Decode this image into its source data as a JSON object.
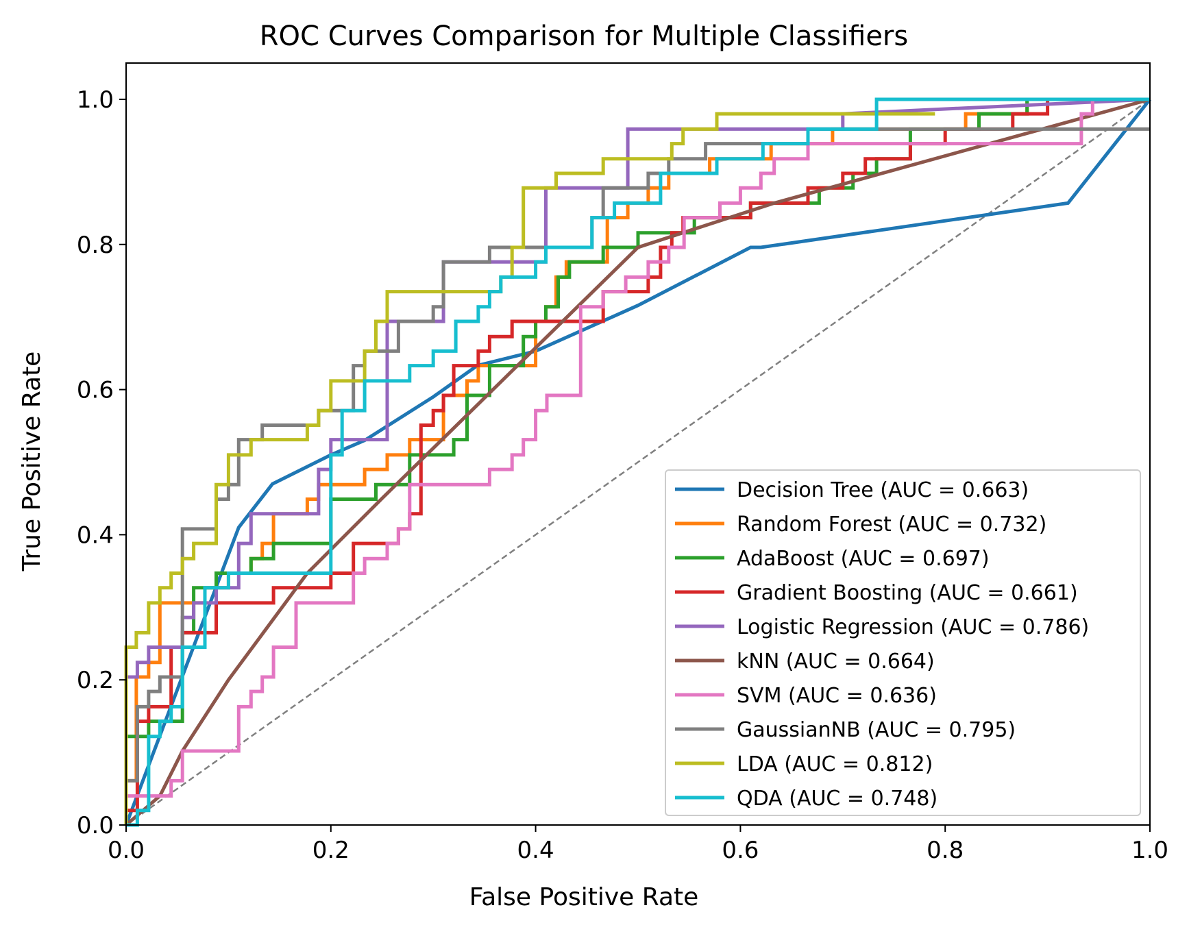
{
  "chart_data": {
    "type": "line",
    "title": "ROC Curves Comparison for Multiple Classifiers",
    "xlabel": "False Positive Rate",
    "ylabel": "True Positive Rate",
    "xlim": [
      0.0,
      1.0
    ],
    "ylim": [
      0.0,
      1.05
    ],
    "xticks": [
      "0.0",
      "0.2",
      "0.4",
      "0.6",
      "0.8",
      "1.0"
    ],
    "yticks": [
      "0.0",
      "0.2",
      "0.4",
      "0.6",
      "0.8",
      "1.0"
    ],
    "grid": false,
    "legend_position": "lower-right",
    "reference_line": {
      "x": [
        0,
        1
      ],
      "y": [
        0,
        1
      ],
      "color": "#808080",
      "style": "dashed"
    },
    "series": [
      {
        "name": "Decision Tree (AUC = 0.663)",
        "color": "#1f77b4",
        "x": [
          0,
          0.11,
          0.143,
          0.2,
          0.233,
          0.3,
          0.343,
          0.4,
          0.5,
          0.61,
          0.62,
          0.92,
          1.0
        ],
        "y": [
          0,
          0.41,
          0.47,
          0.51,
          0.53,
          0.59,
          0.633,
          0.653,
          0.716,
          0.796,
          0.796,
          0.857,
          1.0
        ]
      },
      {
        "name": "Random Forest (AUC = 0.732)",
        "color": "#ff7f0e",
        "x": [
          0,
          0,
          0.01,
          0.01,
          0.022,
          0.022,
          0.033,
          0.033,
          0.077,
          0.077,
          0.1,
          0.1,
          0.122,
          0.122,
          0.133,
          0.133,
          0.144,
          0.144,
          0.177,
          0.177,
          0.188,
          0.188,
          0.233,
          0.233,
          0.255,
          0.255,
          0.277,
          0.277,
          0.31,
          0.31,
          0.333,
          0.333,
          0.344,
          0.344,
          0.4,
          0.4,
          0.41,
          0.41,
          0.42,
          0.42,
          0.43,
          0.43,
          0.47,
          0.47,
          0.49,
          0.49,
          0.51,
          0.51,
          0.53,
          0.53,
          0.57,
          0.57,
          0.63,
          0.63,
          0.69,
          0.69,
          0.82,
          0.82,
          0.88,
          0.88,
          1.0
        ],
        "y": [
          0,
          0.061,
          0.061,
          0.204,
          0.204,
          0.224,
          0.224,
          0.306,
          0.306,
          0.327,
          0.327,
          0.347,
          0.347,
          0.367,
          0.367,
          0.388,
          0.388,
          0.429,
          0.429,
          0.449,
          0.449,
          0.469,
          0.469,
          0.49,
          0.49,
          0.51,
          0.51,
          0.531,
          0.531,
          0.592,
          0.592,
          0.612,
          0.612,
          0.633,
          0.633,
          0.694,
          0.694,
          0.714,
          0.714,
          0.755,
          0.755,
          0.776,
          0.776,
          0.837,
          0.837,
          0.857,
          0.857,
          0.878,
          0.878,
          0.898,
          0.898,
          0.918,
          0.918,
          0.939,
          0.939,
          0.959,
          0.959,
          0.98,
          0.98,
          1.0,
          1.0
        ]
      },
      {
        "name": "AdaBoost (AUC = 0.697)",
        "color": "#2ca02c",
        "x": [
          0,
          0,
          0.022,
          0.022,
          0.055,
          0.055,
          0.066,
          0.066,
          0.088,
          0.088,
          0.122,
          0.122,
          0.144,
          0.144,
          0.155,
          0.155,
          0.2,
          0.2,
          0.244,
          0.244,
          0.277,
          0.277,
          0.31,
          0.31,
          0.32,
          0.32,
          0.333,
          0.333,
          0.355,
          0.355,
          0.388,
          0.388,
          0.4,
          0.4,
          0.41,
          0.41,
          0.422,
          0.422,
          0.433,
          0.433,
          0.466,
          0.466,
          0.5,
          0.5,
          0.555,
          0.555,
          0.61,
          0.61,
          0.677,
          0.677,
          0.71,
          0.71,
          0.733,
          0.733,
          0.766,
          0.766,
          0.82,
          0.82,
          0.833,
          0.833,
          0.88,
          0.88,
          1.0
        ],
        "y": [
          0,
          0.122,
          0.122,
          0.143,
          0.143,
          0.265,
          0.265,
          0.327,
          0.327,
          0.347,
          0.347,
          0.367,
          0.367,
          0.388,
          0.388,
          0.388,
          0.388,
          0.449,
          0.449,
          0.469,
          0.469,
          0.51,
          0.51,
          0.51,
          0.51,
          0.531,
          0.531,
          0.592,
          0.592,
          0.633,
          0.633,
          0.673,
          0.673,
          0.694,
          0.694,
          0.714,
          0.714,
          0.755,
          0.755,
          0.776,
          0.776,
          0.796,
          0.796,
          0.816,
          0.816,
          0.837,
          0.837,
          0.857,
          0.857,
          0.878,
          0.878,
          0.898,
          0.898,
          0.918,
          0.918,
          0.959,
          0.959,
          0.959,
          0.959,
          0.98,
          0.98,
          1.0,
          1.0
        ]
      },
      {
        "name": "Gradient Boosting (AUC = 0.661)",
        "color": "#d62728",
        "x": [
          0,
          0,
          0.011,
          0.011,
          0.022,
          0.022,
          0.044,
          0.044,
          0.055,
          0.055,
          0.066,
          0.066,
          0.088,
          0.088,
          0.1,
          0.1,
          0.144,
          0.144,
          0.177,
          0.177,
          0.2,
          0.2,
          0.222,
          0.222,
          0.255,
          0.255,
          0.266,
          0.266,
          0.277,
          0.277,
          0.288,
          0.288,
          0.3,
          0.3,
          0.31,
          0.31,
          0.32,
          0.32,
          0.344,
          0.344,
          0.355,
          0.355,
          0.377,
          0.377,
          0.466,
          0.466,
          0.51,
          0.51,
          0.522,
          0.522,
          0.533,
          0.533,
          0.544,
          0.544,
          0.61,
          0.61,
          0.666,
          0.666,
          0.7,
          0.7,
          0.722,
          0.722,
          0.766,
          0.766,
          0.8,
          0.8,
          0.866,
          0.866,
          0.9,
          0.9,
          0.93,
          0.93,
          1.0
        ],
        "y": [
          0,
          0.02,
          0.02,
          0.143,
          0.143,
          0.163,
          0.163,
          0.245,
          0.245,
          0.265,
          0.265,
          0.265,
          0.265,
          0.306,
          0.306,
          0.306,
          0.306,
          0.327,
          0.327,
          0.327,
          0.327,
          0.347,
          0.347,
          0.388,
          0.388,
          0.388,
          0.388,
          0.408,
          0.408,
          0.429,
          0.429,
          0.551,
          0.551,
          0.571,
          0.571,
          0.592,
          0.592,
          0.633,
          0.633,
          0.653,
          0.653,
          0.673,
          0.673,
          0.694,
          0.694,
          0.735,
          0.735,
          0.755,
          0.755,
          0.796,
          0.796,
          0.816,
          0.816,
          0.837,
          0.837,
          0.857,
          0.857,
          0.878,
          0.878,
          0.898,
          0.898,
          0.918,
          0.918,
          0.939,
          0.939,
          0.959,
          0.959,
          0.98,
          0.98,
          1.0,
          1.0,
          1.0,
          1.0
        ]
      },
      {
        "name": "Logistic Regression (AUC = 0.786)",
        "color": "#9467bd",
        "x": [
          0,
          0,
          0.011,
          0.011,
          0.022,
          0.022,
          0.055,
          0.055,
          0.066,
          0.066,
          0.088,
          0.088,
          0.11,
          0.11,
          0.122,
          0.122,
          0.188,
          0.188,
          0.2,
          0.2,
          0.255,
          0.255,
          0.31,
          0.31,
          0.41,
          0.41,
          0.49,
          0.49,
          0.7,
          0.7,
          1.0
        ],
        "y": [
          0,
          0.204,
          0.204,
          0.224,
          0.224,
          0.245,
          0.245,
          0.286,
          0.286,
          0.306,
          0.306,
          0.327,
          0.327,
          0.388,
          0.388,
          0.429,
          0.429,
          0.49,
          0.49,
          0.531,
          0.531,
          0.694,
          0.694,
          0.776,
          0.776,
          0.878,
          0.878,
          0.959,
          0.959,
          0.98,
          1.0
        ]
      },
      {
        "name": "kNN (AUC = 0.664)",
        "color": "#8c564b",
        "x": [
          0,
          0.033,
          0.055,
          0.1,
          0.177,
          0.25,
          0.5,
          0.633,
          1.0
        ],
        "y": [
          0,
          0.04,
          0.102,
          0.2,
          0.347,
          0.45,
          0.796,
          0.857,
          1.0
        ]
      },
      {
        "name": "SVM (AUC = 0.636)",
        "color": "#e377c2",
        "x": [
          0,
          0.044,
          0.044,
          0.055,
          0.055,
          0.11,
          0.11,
          0.122,
          0.122,
          0.133,
          0.133,
          0.144,
          0.144,
          0.166,
          0.166,
          0.222,
          0.222,
          0.233,
          0.233,
          0.255,
          0.255,
          0.266,
          0.266,
          0.277,
          0.277,
          0.355,
          0.355,
          0.377,
          0.377,
          0.388,
          0.388,
          0.4,
          0.4,
          0.411,
          0.411,
          0.444,
          0.444,
          0.455,
          0.455,
          0.466,
          0.466,
          0.488,
          0.488,
          0.51,
          0.51,
          0.53,
          0.53,
          0.545,
          0.545,
          0.58,
          0.58,
          0.6,
          0.6,
          0.62,
          0.62,
          0.633,
          0.633,
          0.644,
          0.644,
          0.666,
          0.666,
          0.677,
          0.677,
          0.933,
          0.933,
          0.944,
          0.944,
          1.0
        ],
        "y": [
          0.04,
          0.04,
          0.061,
          0.061,
          0.102,
          0.102,
          0.163,
          0.163,
          0.184,
          0.184,
          0.204,
          0.204,
          0.245,
          0.245,
          0.306,
          0.306,
          0.347,
          0.347,
          0.367,
          0.367,
          0.388,
          0.388,
          0.408,
          0.408,
          0.469,
          0.469,
          0.49,
          0.49,
          0.51,
          0.51,
          0.531,
          0.531,
          0.571,
          0.571,
          0.592,
          0.592,
          0.714,
          0.714,
          0.714,
          0.714,
          0.735,
          0.735,
          0.755,
          0.755,
          0.776,
          0.776,
          0.796,
          0.796,
          0.837,
          0.837,
          0.857,
          0.857,
          0.878,
          0.878,
          0.898,
          0.898,
          0.918,
          0.918,
          0.918,
          0.918,
          0.939,
          0.939,
          0.939,
          0.939,
          0.98,
          0.98,
          1.0,
          1.0
        ]
      },
      {
        "name": "GaussianNB (AUC = 0.795)",
        "color": "#7f7f7f",
        "x": [
          0,
          0,
          0.011,
          0.011,
          0.022,
          0.022,
          0.033,
          0.033,
          0.044,
          0.044,
          0.055,
          0.055,
          0.088,
          0.088,
          0.1,
          0.1,
          0.11,
          0.11,
          0.133,
          0.133,
          0.188,
          0.188,
          0.222,
          0.222,
          0.233,
          0.233,
          0.266,
          0.266,
          0.3,
          0.3,
          0.31,
          0.31,
          0.355,
          0.355,
          0.455,
          0.455,
          0.466,
          0.466,
          0.51,
          0.51,
          0.53,
          0.53,
          0.566,
          0.566,
          0.666,
          0.666,
          1.0
        ],
        "y": [
          0,
          0.061,
          0.061,
          0.163,
          0.163,
          0.184,
          0.184,
          0.204,
          0.204,
          0.204,
          0.204,
          0.408,
          0.408,
          0.449,
          0.449,
          0.469,
          0.469,
          0.531,
          0.531,
          0.551,
          0.551,
          0.571,
          0.571,
          0.633,
          0.633,
          0.653,
          0.653,
          0.694,
          0.694,
          0.714,
          0.714,
          0.776,
          0.776,
          0.796,
          0.796,
          0.837,
          0.837,
          0.878,
          0.878,
          0.898,
          0.898,
          0.918,
          0.918,
          0.939,
          0.939,
          0.959,
          0.959
        ]
      },
      {
        "name": "LDA (AUC = 0.812)",
        "color": "#bcbd22",
        "x": [
          0,
          0,
          0.01,
          0.01,
          0.022,
          0.022,
          0.033,
          0.033,
          0.044,
          0.044,
          0.055,
          0.055,
          0.066,
          0.066,
          0.088,
          0.088,
          0.1,
          0.1,
          0.122,
          0.122,
          0.177,
          0.177,
          0.188,
          0.188,
          0.2,
          0.2,
          0.233,
          0.233,
          0.244,
          0.244,
          0.255,
          0.255,
          0.366,
          0.366,
          0.377,
          0.377,
          0.388,
          0.388,
          0.42,
          0.42,
          0.466,
          0.466,
          0.533,
          0.533,
          0.544,
          0.544,
          0.577,
          0.577,
          0.79,
          0.79
        ],
        "y": [
          0,
          0.245,
          0.245,
          0.265,
          0.265,
          0.306,
          0.306,
          0.327,
          0.327,
          0.347,
          0.347,
          0.367,
          0.367,
          0.388,
          0.388,
          0.469,
          0.469,
          0.51,
          0.51,
          0.531,
          0.531,
          0.551,
          0.551,
          0.571,
          0.571,
          0.612,
          0.612,
          0.653,
          0.653,
          0.694,
          0.694,
          0.735,
          0.735,
          0.755,
          0.755,
          0.796,
          0.796,
          0.878,
          0.878,
          0.898,
          0.898,
          0.918,
          0.918,
          0.939,
          0.939,
          0.959,
          0.959,
          0.98,
          0.98,
          0.98
        ]
      },
      {
        "name": "QDA (AUC = 0.748)",
        "color": "#17becf",
        "x": [
          0,
          0.011,
          0.011,
          0.022,
          0.022,
          0.033,
          0.033,
          0.044,
          0.044,
          0.055,
          0.055,
          0.077,
          0.077,
          0.1,
          0.1,
          0.2,
          0.2,
          0.211,
          0.211,
          0.233,
          0.233,
          0.277,
          0.277,
          0.3,
          0.3,
          0.322,
          0.322,
          0.344,
          0.344,
          0.355,
          0.355,
          0.366,
          0.366,
          0.4,
          0.4,
          0.41,
          0.41,
          0.422,
          0.422,
          0.455,
          0.455,
          0.477,
          0.477,
          0.522,
          0.522,
          0.577,
          0.577,
          0.622,
          0.622,
          0.666,
          0.666,
          0.733,
          0.733,
          1.0
        ],
        "y": [
          0,
          0,
          0.02,
          0.02,
          0.122,
          0.122,
          0.143,
          0.143,
          0.163,
          0.163,
          0.245,
          0.245,
          0.327,
          0.327,
          0.347,
          0.347,
          0.51,
          0.51,
          0.571,
          0.571,
          0.612,
          0.612,
          0.633,
          0.633,
          0.653,
          0.653,
          0.694,
          0.694,
          0.714,
          0.714,
          0.735,
          0.735,
          0.755,
          0.755,
          0.776,
          0.776,
          0.796,
          0.796,
          0.796,
          0.796,
          0.837,
          0.837,
          0.857,
          0.857,
          0.898,
          0.898,
          0.918,
          0.918,
          0.939,
          0.939,
          0.959,
          0.959,
          1.0,
          1.0
        ]
      }
    ]
  }
}
